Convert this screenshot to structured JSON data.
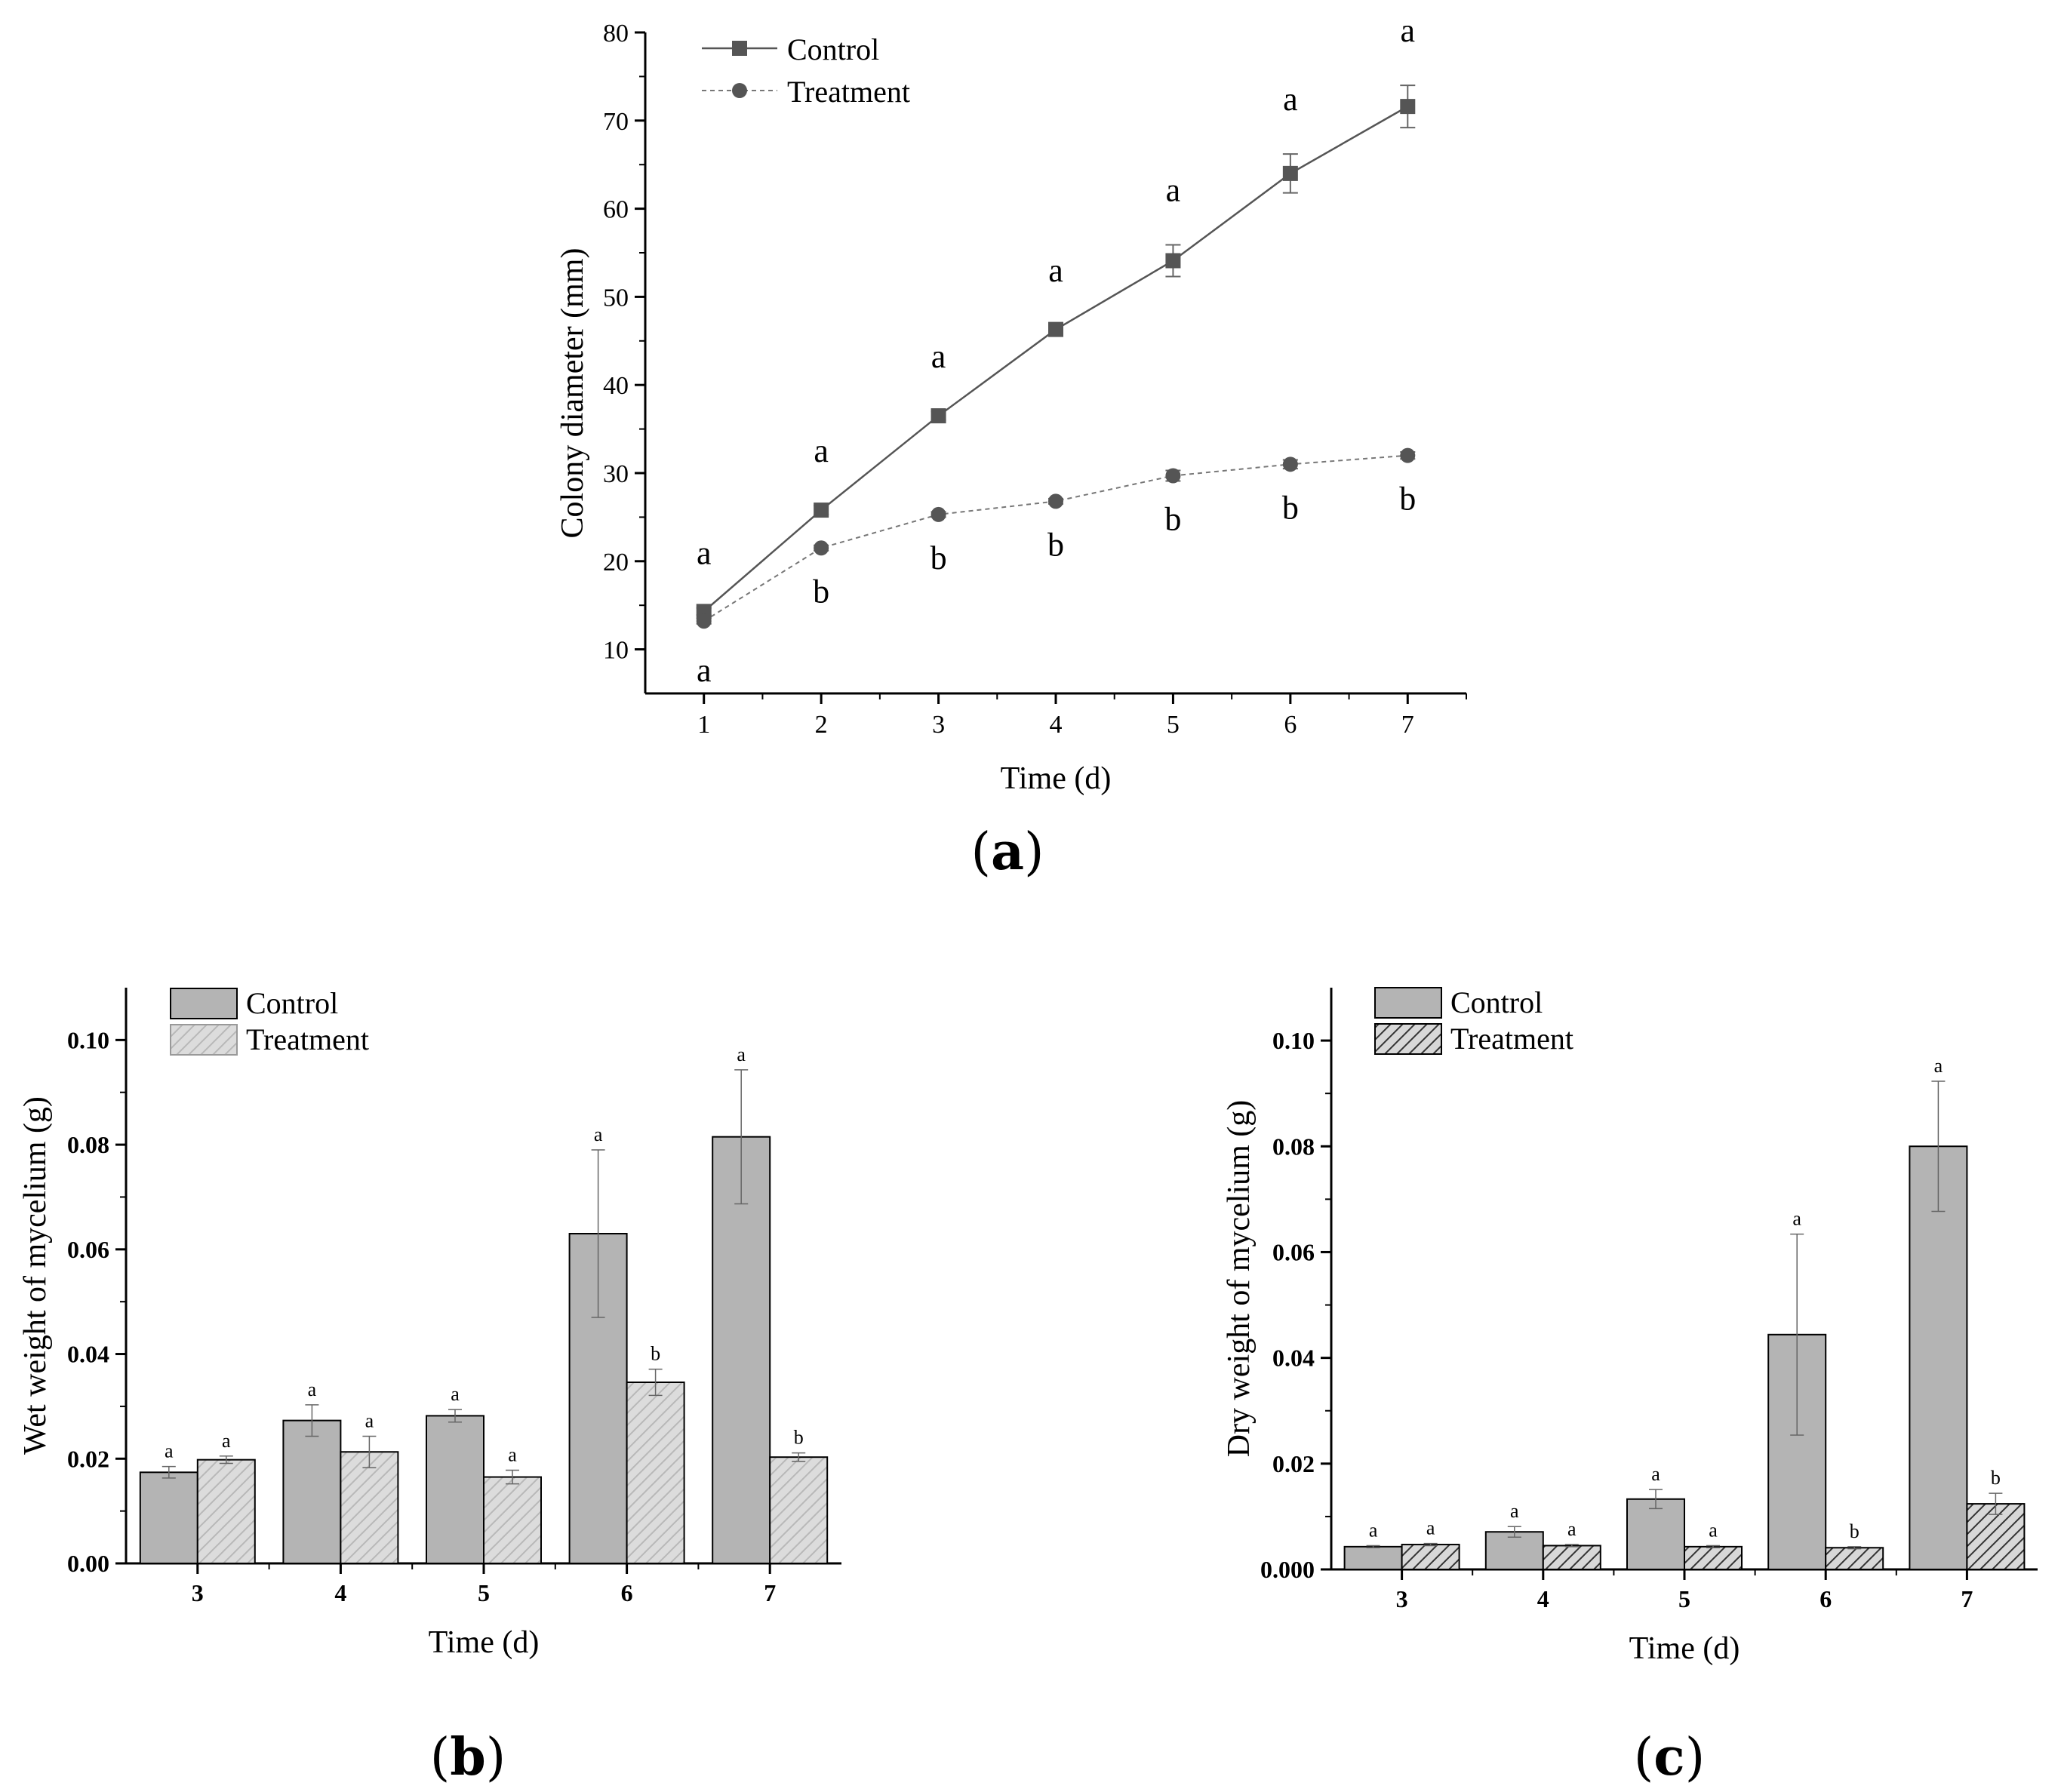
{
  "panels": [
    {
      "open": "(",
      "letter": "a",
      "close": ")"
    },
    {
      "open": "(",
      "letter": "b",
      "close": ")"
    },
    {
      "open": "(",
      "letter": "c",
      "close": ")"
    }
  ],
  "colors": {
    "control_line": "#555555",
    "treatment_line": "#777777",
    "bar_b_control": "#b4b4b4",
    "bar_b_treatment": "#dcdcdc",
    "bar_c_control": "#b4b4b4",
    "bar_c_treatment": "#d8d8d8",
    "axis": "#000000"
  },
  "chart_data": [
    {
      "id": "a",
      "type": "line",
      "xlabel": "Time (d)",
      "ylabel": "Colony diameter (mm)",
      "x": [
        1,
        2,
        3,
        4,
        5,
        6,
        7
      ],
      "xticks": [
        "1",
        "2",
        "3",
        "4",
        "5",
        "6",
        "7"
      ],
      "xlim": [
        0.5,
        7.5
      ],
      "ylim": [
        5,
        80
      ],
      "yticks": [
        10,
        20,
        30,
        40,
        50,
        60,
        70,
        80
      ],
      "ytick_labels": [
        "10",
        "20",
        "30",
        "40",
        "50",
        "60",
        "70",
        "80"
      ],
      "legend_position": "top-left",
      "series": [
        {
          "name": "Control",
          "marker": "square",
          "line": "solid",
          "values": [
            14.3,
            25.8,
            36.5,
            46.3,
            54.1,
            64.0,
            71.6
          ],
          "errors": [
            0.4,
            0.5,
            0.5,
            0.5,
            1.8,
            2.2,
            2.4
          ],
          "sig": [
            "a",
            "a",
            "a",
            "a",
            "a",
            "a",
            "a"
          ]
        },
        {
          "name": "Treatment",
          "marker": "circle",
          "line": "dotted",
          "values": [
            13.2,
            21.5,
            25.3,
            26.8,
            29.7,
            31.0,
            32.0
          ],
          "errors": [
            0.3,
            0.3,
            0.3,
            0.3,
            0.6,
            0.5,
            0.4
          ],
          "sig": [
            "a",
            "b",
            "b",
            "b",
            "b",
            "b",
            "b"
          ]
        }
      ]
    },
    {
      "id": "b",
      "type": "bar",
      "xlabel": "Time (d)",
      "ylabel": "Wet weight of mycelium (g)",
      "categories": [
        "3",
        "4",
        "5",
        "6",
        "7"
      ],
      "ylim": [
        0,
        0.11
      ],
      "yticks": [
        0,
        0.02,
        0.04,
        0.06,
        0.08,
        0.1
      ],
      "ytick_labels": [
        "0.00",
        "0.02",
        "0.04",
        "0.06",
        "0.08",
        "0.10"
      ],
      "legend_position": "top-left",
      "series": [
        {
          "name": "Control",
          "pattern": "solid",
          "values": [
            0.0174,
            0.0273,
            0.0282,
            0.063,
            0.0815
          ],
          "errors": [
            0.0011,
            0.003,
            0.0012,
            0.016,
            0.0128
          ],
          "sig": [
            "a",
            "a",
            "a",
            "a",
            "a"
          ]
        },
        {
          "name": "Treatment",
          "pattern": "hatched",
          "values": [
            0.0198,
            0.0213,
            0.0165,
            0.0346,
            0.0203
          ],
          "errors": [
            0.0007,
            0.003,
            0.0013,
            0.0025,
            0.0008
          ],
          "sig": [
            "a",
            "a",
            "a",
            "b",
            "b"
          ]
        }
      ]
    },
    {
      "id": "c",
      "type": "bar",
      "xlabel": "Time (d)",
      "ylabel": "Dry weight of mycelium (g)",
      "categories": [
        "3",
        "4",
        "5",
        "6",
        "7"
      ],
      "ylim": [
        0,
        0.11
      ],
      "yticks": [
        0,
        0.02,
        0.04,
        0.06,
        0.08,
        0.1
      ],
      "ytick_labels": [
        "0.000",
        "0.02",
        "0.04",
        "0.06",
        "0.08",
        "0.10"
      ],
      "legend_position": "top-left",
      "series": [
        {
          "name": "Control",
          "pattern": "solid",
          "values": [
            0.0043,
            0.0071,
            0.0133,
            0.0444,
            0.08
          ],
          "errors": [
            0.0002,
            0.001,
            0.0018,
            0.019,
            0.0123
          ],
          "sig": [
            "a",
            "a",
            "a",
            "a",
            "a"
          ]
        },
        {
          "name": "Treatment",
          "pattern": "hatched",
          "values": [
            0.0047,
            0.0045,
            0.0043,
            0.0041,
            0.0124
          ],
          "errors": [
            0.0002,
            0.0002,
            0.0002,
            0.0002,
            0.002
          ],
          "sig": [
            "a",
            "a",
            "a",
            "b",
            "b"
          ]
        }
      ]
    }
  ]
}
